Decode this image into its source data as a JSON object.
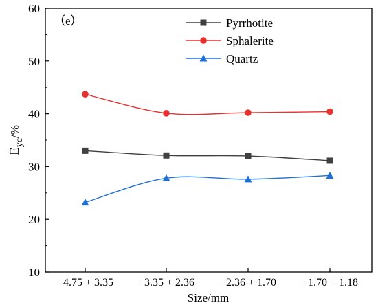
{
  "panel_label": "（e）",
  "chart_data": {
    "type": "line",
    "categories": [
      "−4.75 + 3.35",
      "−3.35 + 2.36",
      "−2.36 + 1.70",
      "−1.70 + 1.18"
    ],
    "series": [
      {
        "name": "Pyrrhotite",
        "values": [
          33.0,
          32.1,
          32.0,
          31.1
        ],
        "color": "#404040",
        "marker": "square"
      },
      {
        "name": "Sphalerite",
        "values": [
          43.7,
          40.1,
          40.2,
          40.4
        ],
        "color": "#e8312f",
        "marker": "circle"
      },
      {
        "name": "Quartz",
        "values": [
          23.2,
          27.8,
          27.6,
          28.3
        ],
        "color": "#1f6fd6",
        "marker": "triangle"
      }
    ],
    "xlabel": "Size/mm",
    "ylabel_main": "E",
    "ylabel_sub": "yc",
    "ylabel_unit": "/%",
    "ylim": [
      10,
      60
    ],
    "yticks": [
      10,
      20,
      30,
      40,
      50,
      60
    ],
    "grid": false,
    "legend_position": "top-right"
  }
}
